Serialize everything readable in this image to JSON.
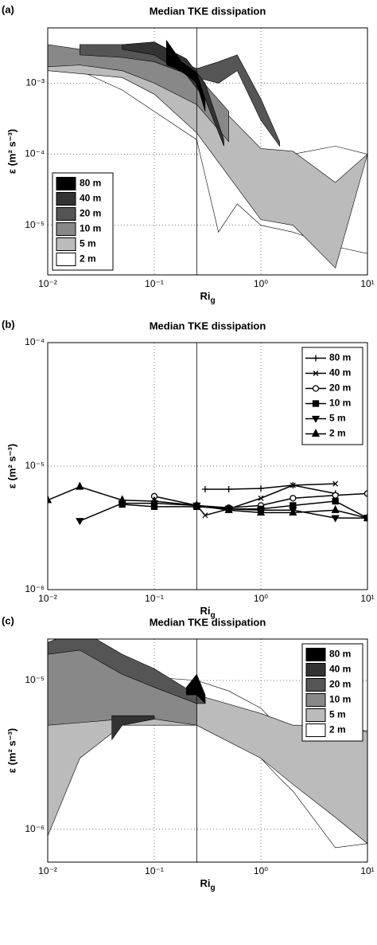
{
  "chart_data": [
    {
      "type": "band",
      "panel_label": "(a)",
      "title": "Median TKE dissipation",
      "xlabel": "Ri",
      "xlabel_sub": "g",
      "ylabel": "ε (m² s⁻³)",
      "log_x": true,
      "log_y": true,
      "grid": true,
      "legend_position": "lower left",
      "xlim": [
        0.01,
        10
      ],
      "ylim": [
        2e-06,
        0.006
      ],
      "xticks": [
        {
          "value": 0.01,
          "label": "10⁻²"
        },
        {
          "value": 0.1,
          "label": "10⁻¹"
        },
        {
          "value": 1,
          "label": "10⁰"
        },
        {
          "value": 10,
          "label": "10¹"
        }
      ],
      "yticks": [
        {
          "value": 1e-05,
          "label": "10⁻⁵"
        },
        {
          "value": 0.0001,
          "label": "10⁻⁴"
        },
        {
          "value": 0.001,
          "label": "10⁻³"
        }
      ],
      "reference_line_x": 0.25,
      "series": [
        {
          "name": "80 m",
          "color": "#000000",
          "x": [
            0.13,
            0.18,
            0.25,
            0.3
          ],
          "low": [
            0.0018,
            0.0015,
            0.001,
            0.0004
          ],
          "high": [
            0.004,
            0.002,
            0.0014,
            0.0006
          ]
        },
        {
          "name": "40 m",
          "color": "#333333",
          "x": [
            0.05,
            0.1,
            0.2,
            0.3,
            0.45
          ],
          "low": [
            0.003,
            0.0025,
            0.0013,
            0.0006,
            0.00013
          ],
          "high": [
            0.0035,
            0.0038,
            0.0022,
            0.001,
            0.00016
          ]
        },
        {
          "name": "20 m",
          "color": "#555555",
          "x": [
            0.02,
            0.05,
            0.1,
            0.25,
            0.4,
            0.6,
            1,
            1.5
          ],
          "low": [
            0.0025,
            0.0023,
            0.002,
            0.0012,
            0.001,
            0.0015,
            0.0003,
            0.00013
          ],
          "high": [
            0.0035,
            0.0035,
            0.0028,
            0.0016,
            0.002,
            0.0025,
            0.0006,
            0.00015
          ]
        },
        {
          "name": "10 m",
          "color": "#888888",
          "x": [
            0.01,
            0.02,
            0.05,
            0.1,
            0.25,
            0.5
          ],
          "low": [
            0.0017,
            0.0018,
            0.0015,
            0.001,
            0.0005,
            0.00015
          ],
          "high": [
            0.0035,
            0.003,
            0.0025,
            0.0023,
            0.0013,
            0.0004
          ]
        },
        {
          "name": "5 m",
          "color": "#bbbbbb",
          "x": [
            0.01,
            0.05,
            0.1,
            0.25,
            1,
            2,
            5,
            10
          ],
          "low": [
            0.0015,
            0.0012,
            0.0007,
            0.0002,
            1.2e-05,
            1e-05,
            2.5e-06,
            0.0001
          ],
          "high": [
            0.003,
            0.002,
            0.0015,
            0.001,
            0.00012,
            0.00011,
            4e-05,
            0.0001
          ]
        },
        {
          "name": "2 m",
          "color": "#ffffff",
          "x": [
            0.01,
            0.02,
            0.05,
            0.1,
            0.25,
            0.4,
            0.6,
            1,
            2,
            5,
            10
          ],
          "low": [
            0.0016,
            0.0015,
            0.0008,
            0.0004,
            0.00016,
            8e-06,
            2e-05,
            1e-05,
            8e-06,
            5e-06,
            4e-06
          ],
          "high": [
            0.0025,
            0.002,
            0.0018,
            0.0015,
            0.0005,
            0.00025,
            0.00012,
            0.0001,
            0.0001,
            0.00013,
            0.0001
          ]
        }
      ]
    },
    {
      "type": "line",
      "panel_label": "(b)",
      "title": "Median TKE dissipation",
      "xlabel": "Ri",
      "xlabel_sub": "g",
      "ylabel": "ε (m² s⁻³)",
      "log_x": true,
      "log_y": true,
      "grid": true,
      "legend_position": "upper right",
      "xlim": [
        0.01,
        10
      ],
      "ylim": [
        1e-06,
        0.0001
      ],
      "xticks": [
        {
          "value": 0.01,
          "label": "10⁻²"
        },
        {
          "value": 0.1,
          "label": "10⁻¹"
        },
        {
          "value": 1,
          "label": "10⁰"
        },
        {
          "value": 10,
          "label": "10¹"
        }
      ],
      "yticks": [
        {
          "value": 1e-06,
          "label": "10⁻⁶"
        },
        {
          "value": 1e-05,
          "label": "10⁻⁵"
        },
        {
          "value": 0.0001,
          "label": "10⁻⁴"
        }
      ],
      "reference_line_x": 0.25,
      "series": [
        {
          "name": "80 m",
          "color": "#000000",
          "marker": "plus",
          "x": [
            0.3,
            0.5,
            1,
            2,
            5
          ],
          "values": [
            6.5e-06,
            6.5e-06,
            6.6e-06,
            7e-06,
            6e-06
          ]
        },
        {
          "name": "40 m",
          "color": "#000000",
          "marker": "cross",
          "x": [
            0.25,
            0.3,
            0.5,
            1,
            2,
            5
          ],
          "values": [
            4.8e-06,
            4e-06,
            4.5e-06,
            5.5e-06,
            7e-06,
            7.2e-06
          ]
        },
        {
          "name": "20 m",
          "color": "#000000",
          "marker": "circle",
          "x": [
            0.1,
            0.25,
            0.5,
            1,
            2,
            5,
            10
          ],
          "values": [
            5.7e-06,
            4.8e-06,
            4.6e-06,
            4.8e-06,
            5.5e-06,
            5.8e-06,
            6e-06
          ]
        },
        {
          "name": "10 m",
          "color": "#000000",
          "marker": "square",
          "x": [
            0.05,
            0.1,
            0.25,
            0.5,
            1,
            2,
            5,
            10
          ],
          "values": [
            4.9e-06,
            4.7e-06,
            4.7e-06,
            4.5e-06,
            4.5e-06,
            4.8e-06,
            5.2e-06,
            3.8e-06
          ]
        },
        {
          "name": "5 m",
          "color": "#000000",
          "marker": "triangle-down",
          "x": [
            0.02,
            0.05,
            0.1,
            0.25,
            0.5,
            1,
            2,
            5,
            10
          ],
          "values": [
            3.6e-06,
            5e-06,
            5e-06,
            4.8e-06,
            4.5e-06,
            4.4e-06,
            4.4e-06,
            3.8e-06,
            3.8e-06
          ]
        },
        {
          "name": "2 m",
          "color": "#000000",
          "marker": "triangle-up",
          "x": [
            0.01,
            0.02,
            0.05,
            0.1,
            0.25,
            0.5,
            1,
            2,
            5,
            10
          ],
          "values": [
            5.3e-06,
            6.8e-06,
            5.3e-06,
            5.2e-06,
            4.8e-06,
            4.4e-06,
            4.2e-06,
            4.2e-06,
            4.4e-06,
            3.8e-06
          ]
        }
      ]
    },
    {
      "type": "band",
      "panel_label": "(c)",
      "title": "Median TKE dissipation",
      "xlabel": "Ri",
      "xlabel_sub": "g",
      "ylabel": "ε (m² s⁻³)",
      "log_x": true,
      "log_y": true,
      "grid": true,
      "legend_position": "upper right",
      "xlim": [
        0.01,
        10
      ],
      "ylim": [
        6e-07,
        1.9e-05
      ],
      "xticks": [
        {
          "value": 0.01,
          "label": "10⁻²"
        },
        {
          "value": 0.1,
          "label": "10⁻¹"
        },
        {
          "value": 1,
          "label": "10⁰"
        },
        {
          "value": 10,
          "label": "10¹"
        }
      ],
      "yticks": [
        {
          "value": 1e-06,
          "label": "10⁻⁶"
        },
        {
          "value": 1e-05,
          "label": "10⁻⁵"
        }
      ],
      "reference_line_x": 0.25,
      "series": [
        {
          "name": "80 m",
          "color": "#000000",
          "x": [
            0.2,
            0.25,
            0.3
          ],
          "low": [
            8e-06,
            8e-06,
            7e-06
          ],
          "high": [
            9e-06,
            1.1e-05,
            8e-06
          ]
        },
        {
          "name": "40 m",
          "color": "#333333",
          "x": [
            0.04,
            0.05,
            0.1
          ],
          "low": [
            4e-06,
            5e-06,
            5.5e-06
          ],
          "high": [
            5.8e-06,
            5.8e-06,
            5.8e-06
          ]
        },
        {
          "name": "20 m",
          "color": "#555555",
          "x": [
            0.01,
            0.02,
            0.05,
            0.1,
            0.25,
            0.3
          ],
          "low": [
            1.5e-05,
            1.6e-05,
            1.1e-05,
            9e-06,
            7e-06,
            7e-06
          ],
          "high": [
            1.8e-05,
            2.2e-05,
            1.5e-05,
            1.2e-05,
            8e-06,
            7.5e-06
          ]
        },
        {
          "name": "10 m",
          "color": "#888888",
          "x": [
            0.01,
            0.02,
            0.05,
            0.1,
            0.25
          ],
          "low": [
            5e-06,
            5.2e-06,
            5.5e-06,
            5.5e-06,
            5e-06
          ],
          "high": [
            1.6e-05,
            1.6e-05,
            1.2e-05,
            1e-05,
            7.5e-06
          ]
        },
        {
          "name": "5 m",
          "color": "#bbbbbb",
          "x": [
            0.01,
            0.02,
            0.05,
            0.1,
            0.25,
            1,
            2,
            5,
            10
          ],
          "low": [
            9e-07,
            3e-06,
            5e-06,
            5e-06,
            5e-06,
            3e-06,
            2e-06,
            1.2e-06,
            8e-07
          ],
          "high": [
            1.5e-05,
            1.2e-05,
            1e-05,
            9e-06,
            8e-06,
            6e-06,
            5e-06,
            5e-06,
            4.5e-06
          ]
        },
        {
          "name": "2 m",
          "color": "#ffffff",
          "x": [
            0.01,
            0.02,
            0.05,
            0.1,
            0.25,
            0.5,
            1,
            1.5,
            2,
            5,
            10
          ],
          "low": [
            5.5e-06,
            5e-06,
            5.8e-06,
            5.8e-06,
            5.3e-06,
            4.5e-06,
            3e-06,
            2.2e-06,
            1.8e-06,
            7.5e-07,
            8e-07
          ],
          "high": [
            1.1e-05,
            1.05e-05,
            1.05e-05,
            1.05e-05,
            1e-05,
            8.5e-06,
            6.5e-06,
            4.8e-06,
            5e-06,
            4.6e-06,
            4.6e-06
          ]
        }
      ]
    }
  ]
}
